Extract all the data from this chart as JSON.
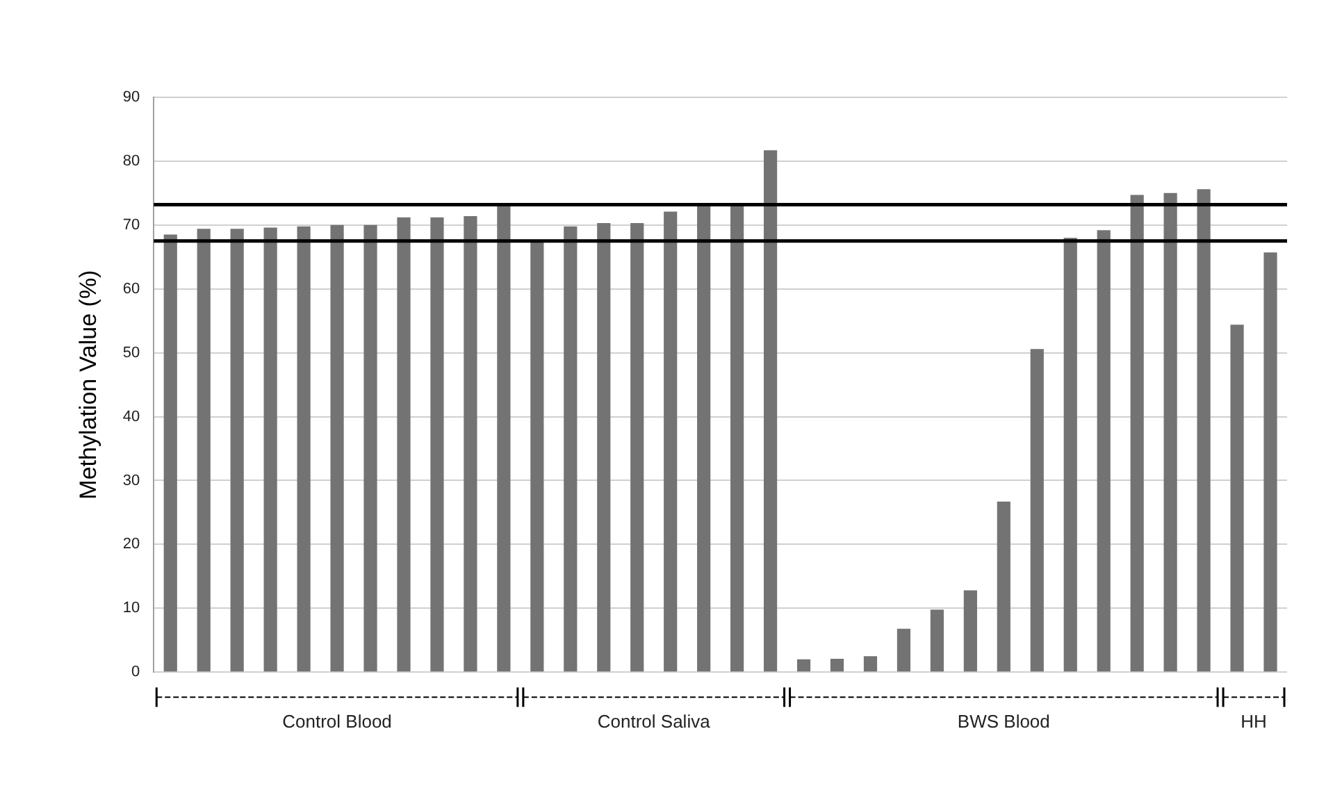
{
  "chart_data": {
    "type": "bar",
    "ylabel": "Methylation Value (%)",
    "categories": [
      null,
      null,
      null,
      null,
      null,
      null,
      null,
      null,
      null,
      null,
      null,
      null,
      null,
      null,
      null,
      null,
      null,
      null,
      null,
      null,
      null,
      null,
      null,
      null,
      null,
      null,
      null,
      null,
      null,
      null,
      null,
      null,
      null,
      null
    ],
    "series": [
      {
        "color": "#737373",
        "values": [
          68.5,
          69.4,
          69.4,
          69.6,
          69.8,
          70.0,
          70.0,
          71.2,
          71.2,
          71.4,
          73.0,
          null,
          null,
          null,
          null,
          null,
          null,
          null,
          null,
          null,
          null,
          null,
          null,
          null,
          null,
          null,
          null,
          null,
          null,
          null,
          null,
          null,
          null,
          null
        ]
      },
      {
        "color": "#737373",
        "values": [
          null,
          null,
          null,
          null,
          null,
          null,
          null,
          null,
          null,
          null,
          null,
          67.5,
          69.8,
          70.3,
          70.3,
          72.1,
          73.0,
          73.2,
          81.7,
          null,
          null,
          null,
          null,
          null,
          null,
          null,
          null,
          null,
          null,
          null,
          null,
          null,
          null,
          null
        ]
      },
      {
        "color": "#737373",
        "values": [
          null,
          null,
          null,
          null,
          null,
          null,
          null,
          null,
          null,
          null,
          null,
          null,
          null,
          null,
          null,
          null,
          null,
          null,
          null,
          2.0,
          2.1,
          2.5,
          6.8,
          9.8,
          12.8,
          26.7,
          50.6,
          68.0,
          69.2,
          74.7,
          75.0,
          75.6,
          null,
          null
        ]
      },
      {
        "color": "#737373",
        "values": [
          null,
          null,
          null,
          null,
          null,
          null,
          null,
          null,
          null,
          null,
          null,
          null,
          null,
          null,
          null,
          null,
          null,
          null,
          null,
          null,
          null,
          null,
          null,
          null,
          null,
          null,
          null,
          null,
          null,
          null,
          null,
          null,
          54.4,
          65.7
        ]
      }
    ],
    "ylim": [
      0,
      90
    ],
    "yticks": [
      0,
      10,
      20,
      30,
      40,
      50,
      60,
      70,
      80,
      90
    ],
    "grid": "y",
    "legend": false,
    "ref_lines": [
      {
        "axis": "y",
        "value": 73.2,
        "color": "#000000"
      },
      {
        "axis": "y",
        "value": 67.5,
        "color": "#000000"
      }
    ],
    "annotations": [
      "Control Blood",
      "Control Saliva",
      "BWS Blood",
      "HH"
    ]
  }
}
